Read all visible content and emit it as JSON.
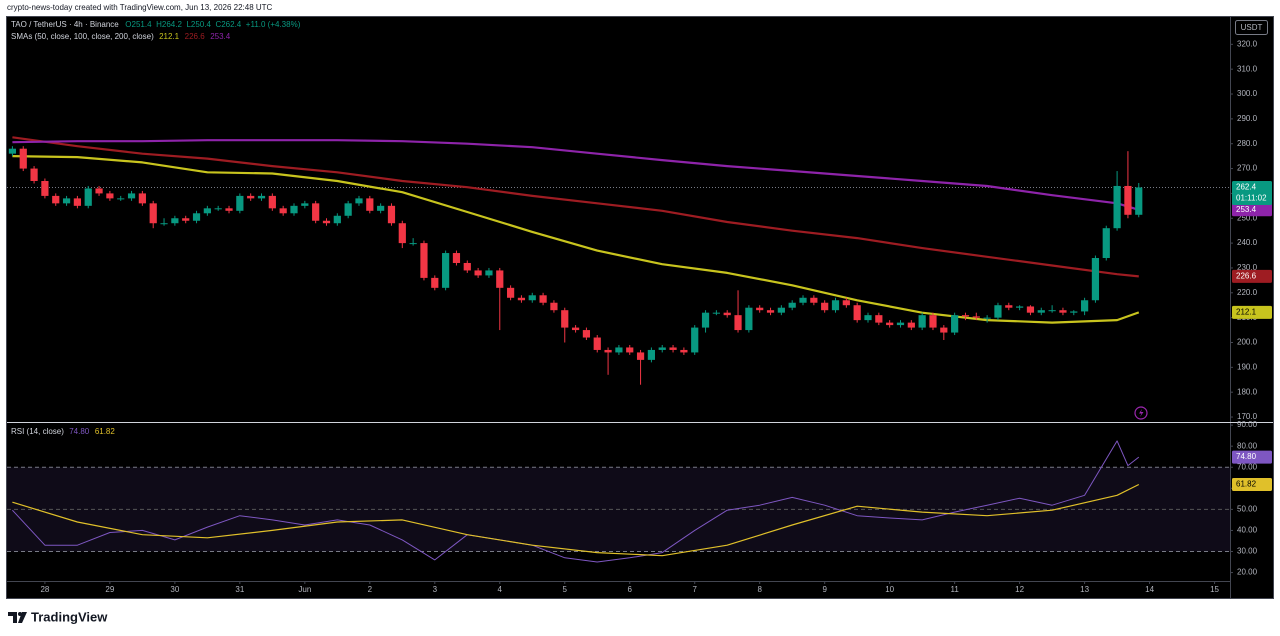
{
  "watermark": "crypto-news-today created with TradingView.com, Jun 13, 2026 22:48 UTC",
  "brand": "TradingView",
  "chart_data": [
    {
      "type": "candlestick",
      "title": "TAO / TetherUS · 4h · Binance",
      "ohlc_text": [
        "O251.4",
        "H264.2",
        "L250.4",
        "C262.4",
        "+11.0 (+4.38%)"
      ],
      "indicator_label": "SMAs (50, close, 100, close, 200, close)",
      "currency": "USDT",
      "countdown": "01:11:02",
      "up_color": "#089981",
      "down_color": "#f23645",
      "x": [
        -12,
        -8,
        -4,
        0,
        4,
        8,
        12,
        16,
        20,
        24,
        28,
        32,
        36,
        40,
        44,
        48,
        52,
        56,
        60,
        64,
        68,
        72,
        76,
        80,
        84,
        88,
        92,
        96,
        100,
        104,
        108,
        112,
        116,
        120,
        124,
        128,
        132,
        136,
        140,
        144,
        148,
        152,
        156,
        160,
        164,
        168,
        172,
        176,
        180,
        184,
        188,
        192,
        196,
        200,
        204,
        208,
        212,
        216,
        220,
        224,
        228,
        232,
        236,
        240,
        244,
        248,
        252,
        256,
        260,
        264,
        268,
        272,
        276,
        280,
        284,
        288,
        292,
        296,
        300,
        304,
        308,
        312,
        316,
        320,
        324,
        328,
        332,
        336,
        340,
        344,
        348,
        352,
        356,
        360,
        364,
        368,
        372,
        376,
        380,
        384,
        388,
        392,
        396,
        400,
        404
      ],
      "open": [
        276,
        278,
        270,
        265,
        259,
        256,
        258,
        255,
        262,
        260,
        258,
        258,
        260,
        256,
        248,
        248,
        250,
        249,
        252,
        254,
        254,
        253,
        259,
        258,
        259,
        254,
        252,
        255,
        256,
        249,
        248,
        251,
        256,
        258,
        253,
        255,
        248,
        240,
        240,
        226,
        222,
        236,
        232,
        229,
        227,
        229,
        222,
        218,
        217,
        219,
        216,
        213,
        206,
        205,
        202,
        197,
        196,
        198,
        196,
        193,
        197,
        198,
        197,
        196,
        206,
        212,
        212,
        211,
        205,
        214,
        213,
        212,
        214,
        216,
        218,
        216,
        213,
        217,
        215,
        209,
        211,
        208,
        207,
        208,
        206,
        211,
        206,
        204,
        211,
        210.5,
        210,
        210,
        215,
        214,
        214.5,
        212,
        213,
        213,
        212,
        212.5,
        217,
        234,
        246,
        263,
        251.4
      ],
      "high": [
        279,
        279,
        271,
        266,
        260,
        259,
        259,
        263,
        263,
        261,
        259,
        261,
        261,
        257,
        250,
        251,
        251,
        253,
        255,
        255,
        255,
        260,
        260,
        260,
        260,
        255,
        256,
        257,
        257,
        250,
        252,
        257,
        259,
        259,
        256,
        256,
        249,
        242,
        241,
        227,
        237,
        237,
        233,
        230,
        230,
        230,
        223,
        219,
        220,
        220,
        217,
        214,
        207,
        206,
        203,
        198,
        199,
        199,
        197,
        198,
        199,
        199,
        198,
        207,
        213,
        213,
        213,
        221,
        215,
        215,
        214,
        215,
        217,
        219,
        219,
        217,
        218,
        218,
        216,
        212,
        212,
        209,
        209,
        209,
        212,
        212,
        207,
        212,
        212,
        212,
        211,
        216,
        216,
        215,
        215,
        214,
        215,
        214,
        213,
        218,
        235,
        247,
        269,
        277,
        264.2
      ],
      "low": [
        275,
        269,
        264,
        258,
        255,
        255,
        254,
        254,
        259,
        257,
        257,
        257,
        255,
        246,
        247,
        247,
        248,
        248,
        251,
        253,
        252,
        252,
        257,
        257,
        253,
        251,
        251,
        254,
        248,
        247,
        247,
        250,
        255,
        252,
        252,
        247,
        238,
        239,
        225,
        221,
        221,
        231,
        228,
        226,
        226,
        205,
        217,
        216,
        216,
        215,
        212,
        200,
        204,
        201,
        196,
        187,
        195,
        195,
        183,
        192,
        196,
        196,
        195,
        195,
        204,
        211,
        210,
        204,
        204,
        212,
        211,
        211,
        213,
        215,
        215,
        212,
        212,
        214,
        208,
        208,
        207,
        206,
        206,
        205,
        205,
        205,
        201,
        203,
        209,
        209,
        208,
        209,
        213,
        213,
        211,
        211,
        212,
        211,
        211,
        211,
        216,
        233,
        245,
        250,
        250.4
      ],
      "close": [
        278,
        270,
        265,
        259,
        256,
        258,
        255,
        262,
        260,
        258,
        258,
        260,
        256,
        248,
        248,
        250,
        249,
        252,
        254,
        254,
        253,
        259,
        258,
        259,
        254,
        252,
        255,
        256,
        249,
        248,
        251,
        256,
        258,
        253,
        255,
        248,
        240,
        240,
        226,
        222,
        236,
        232,
        229,
        227,
        229,
        222,
        218,
        217,
        219,
        216,
        213,
        206,
        205,
        202,
        197,
        196,
        198,
        196,
        193,
        197,
        198,
        197,
        196,
        206,
        212,
        212,
        211,
        205,
        214,
        213,
        212,
        214,
        216,
        218,
        216,
        213,
        217,
        215,
        209,
        211,
        208,
        207,
        208,
        206,
        211,
        206,
        204,
        211,
        210.5,
        210,
        210,
        215,
        214,
        214.5,
        212,
        213,
        213,
        212,
        212.5,
        217,
        234,
        246,
        263,
        251.4,
        262.4
      ],
      "series": [
        {
          "color": "#c8c41e",
          "x": [
            -12,
            12,
            36,
            60,
            84,
            108,
            132,
            156,
            180,
            204,
            228,
            252,
            276,
            300,
            324,
            348,
            372,
            396,
            404
          ],
          "values": [
            275,
            274.6,
            272.5,
            268.5,
            268,
            265,
            260.5,
            252.5,
            244.5,
            237,
            231.5,
            228,
            223,
            217,
            212,
            209,
            208,
            209,
            212.1
          ]
        },
        {
          "color": "#9e1c22",
          "x": [
            -12,
            12,
            36,
            60,
            84,
            108,
            132,
            156,
            180,
            204,
            228,
            252,
            276,
            300,
            324,
            348,
            372,
            396,
            404
          ],
          "values": [
            282.6,
            279,
            276,
            274,
            271,
            268.5,
            265,
            262.5,
            259,
            256,
            253,
            248.5,
            245,
            242,
            238,
            234.5,
            231,
            227.5,
            226.6
          ]
        },
        {
          "color": "#8e24aa",
          "x": [
            -12,
            12,
            36,
            60,
            84,
            108,
            132,
            156,
            180,
            204,
            228,
            252,
            276,
            300,
            324,
            348,
            372,
            396,
            404
          ],
          "values": [
            280.6,
            281,
            281,
            281.4,
            281.4,
            281.4,
            281,
            280,
            278.6,
            276,
            273.4,
            271,
            269,
            267,
            265,
            263,
            259.3,
            256,
            253.4
          ]
        }
      ],
      "xlim": [
        -14,
        437.7
      ],
      "xticks": [
        {
          "value": 0,
          "label": "28"
        },
        {
          "value": 24,
          "label": "29"
        },
        {
          "value": 48,
          "label": "30"
        },
        {
          "value": 72,
          "label": "31"
        },
        {
          "value": 96,
          "label": "Jun"
        },
        {
          "value": 120,
          "label": "2"
        },
        {
          "value": 144,
          "label": "3"
        },
        {
          "value": 168,
          "label": "4"
        },
        {
          "value": 192,
          "label": "5"
        },
        {
          "value": 216,
          "label": "6"
        },
        {
          "value": 240,
          "label": "7"
        },
        {
          "value": 264,
          "label": "8"
        },
        {
          "value": 288,
          "label": "9"
        },
        {
          "value": 312,
          "label": "10"
        },
        {
          "value": 336,
          "label": "11"
        },
        {
          "value": 360,
          "label": "12"
        },
        {
          "value": 384,
          "label": "13"
        },
        {
          "value": 408,
          "label": "14"
        },
        {
          "value": 432,
          "label": "15"
        }
      ],
      "ylim": [
        168,
        331
      ],
      "yticks": [
        {
          "value": 170,
          "label": "170.0"
        },
        {
          "value": 180,
          "label": "180.0"
        },
        {
          "value": 190,
          "label": "190.0"
        },
        {
          "value": 200,
          "label": "200.0"
        },
        {
          "value": 210,
          "label": "210.0"
        },
        {
          "value": 220,
          "label": "220.0"
        },
        {
          "value": 230,
          "label": "230.0"
        },
        {
          "value": 240,
          "label": "240.0"
        },
        {
          "value": 250,
          "label": "250.0"
        },
        {
          "value": 260,
          "label": "260.0"
        },
        {
          "value": 270,
          "label": "270.0"
        },
        {
          "value": 280,
          "label": "280.0"
        },
        {
          "value": 290,
          "label": "290.0"
        },
        {
          "value": 300,
          "label": "300.0"
        },
        {
          "value": 310,
          "label": "310.0"
        },
        {
          "value": 320,
          "label": "320.0"
        }
      ],
      "grid": false
    },
    {
      "type": "line",
      "title": "RSI (14, close)",
      "series": [
        {
          "color": "#7e57c2",
          "x": [
            -12,
            0,
            12,
            24,
            36,
            48,
            60,
            72,
            84,
            96,
            108,
            120,
            132,
            144,
            156,
            168,
            180,
            192,
            204,
            216,
            228,
            240,
            252,
            264,
            276,
            288,
            300,
            312,
            324,
            336,
            348,
            360,
            372,
            384,
            396,
            400,
            404
          ],
          "values": [
            49.6,
            33,
            33,
            39,
            40,
            35.5,
            41.6,
            47,
            45,
            42.6,
            45,
            42.6,
            35.5,
            26,
            38,
            35.5,
            33,
            27,
            25,
            27,
            29.5,
            40,
            49.6,
            52,
            55.7,
            52,
            47,
            45.9,
            45,
            48.7,
            52,
            55.3,
            52,
            56.7,
            82.5,
            70.8,
            74.8
          ],
          "value_labels": [
            null,
            null,
            null,
            null,
            null,
            null,
            null,
            null,
            null,
            null,
            null,
            null,
            null,
            null,
            null,
            null,
            null,
            null,
            null,
            null,
            null,
            null,
            null,
            null,
            null,
            null,
            null,
            null,
            null,
            null,
            null,
            null,
            null,
            null,
            null,
            null,
            "74.80"
          ]
        },
        {
          "color": "#e0c02a",
          "x": [
            -12,
            12,
            36,
            60,
            84,
            108,
            132,
            156,
            180,
            204,
            228,
            252,
            276,
            300,
            324,
            348,
            372,
            396,
            404
          ],
          "values": [
            53.4,
            44,
            38,
            36.5,
            40,
            44,
            45,
            38,
            33,
            29.5,
            28,
            33,
            42.6,
            51.5,
            48.7,
            47,
            49.6,
            56.7,
            61.82
          ]
        }
      ],
      "band": [
        30,
        70
      ],
      "midline": 50,
      "ylim": [
        16,
        91
      ],
      "yticks": [
        {
          "value": 20,
          "label": "20.00"
        },
        {
          "value": 30,
          "label": "30.00"
        },
        {
          "value": 40,
          "label": "40.00"
        },
        {
          "value": 50,
          "label": "50.00"
        },
        {
          "value": 60,
          "label": "60.00"
        },
        {
          "value": 70,
          "label": "70.00"
        },
        {
          "value": 80,
          "label": "80.00"
        },
        {
          "value": 90,
          "label": "90.00"
        }
      ],
      "grid": false
    }
  ]
}
